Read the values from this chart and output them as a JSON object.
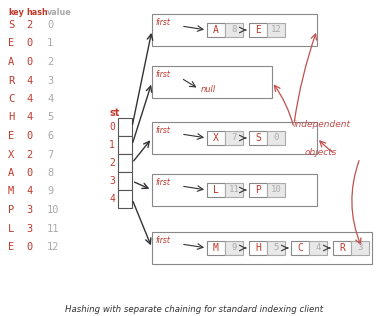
{
  "title": "Hashing with separate chaining for standard indexing client",
  "keys": [
    "S",
    "E",
    "A",
    "R",
    "C",
    "H",
    "E",
    "X",
    "A",
    "M",
    "P",
    "L",
    "E"
  ],
  "hashes": [
    2,
    0,
    0,
    4,
    4,
    4,
    0,
    2,
    0,
    4,
    3,
    3,
    0
  ],
  "values": [
    0,
    1,
    2,
    3,
    4,
    5,
    6,
    7,
    8,
    9,
    10,
    11,
    12
  ],
  "key_color": "#c0392b",
  "hash_color": "#c0392b",
  "value_color": "#aaaaaa",
  "st_label_color": "#c0392b",
  "node_key_color": "#c0392b",
  "node_val_color": "#aaaaaa",
  "first_color": "#c0392b",
  "null_color": "#c0392b",
  "arrow_color": "#333333",
  "red_arrow_color": "#c0504d",
  "bg_color": "#ffffff",
  "chain0": [
    [
      "A",
      8
    ],
    [
      "E",
      12
    ]
  ],
  "chain1": [],
  "chain2": [
    [
      "X",
      7
    ],
    [
      "S",
      0
    ]
  ],
  "chain3": [
    [
      "L",
      11
    ],
    [
      "P",
      10
    ]
  ],
  "chain4": [
    [
      "M",
      9
    ],
    [
      "H",
      5
    ],
    [
      "C",
      4
    ],
    [
      "R",
      3
    ]
  ],
  "independent_text": "independent",
  "objects_text": "objects",
  "header_key": "key",
  "header_hash": "hash",
  "header_value": "value"
}
